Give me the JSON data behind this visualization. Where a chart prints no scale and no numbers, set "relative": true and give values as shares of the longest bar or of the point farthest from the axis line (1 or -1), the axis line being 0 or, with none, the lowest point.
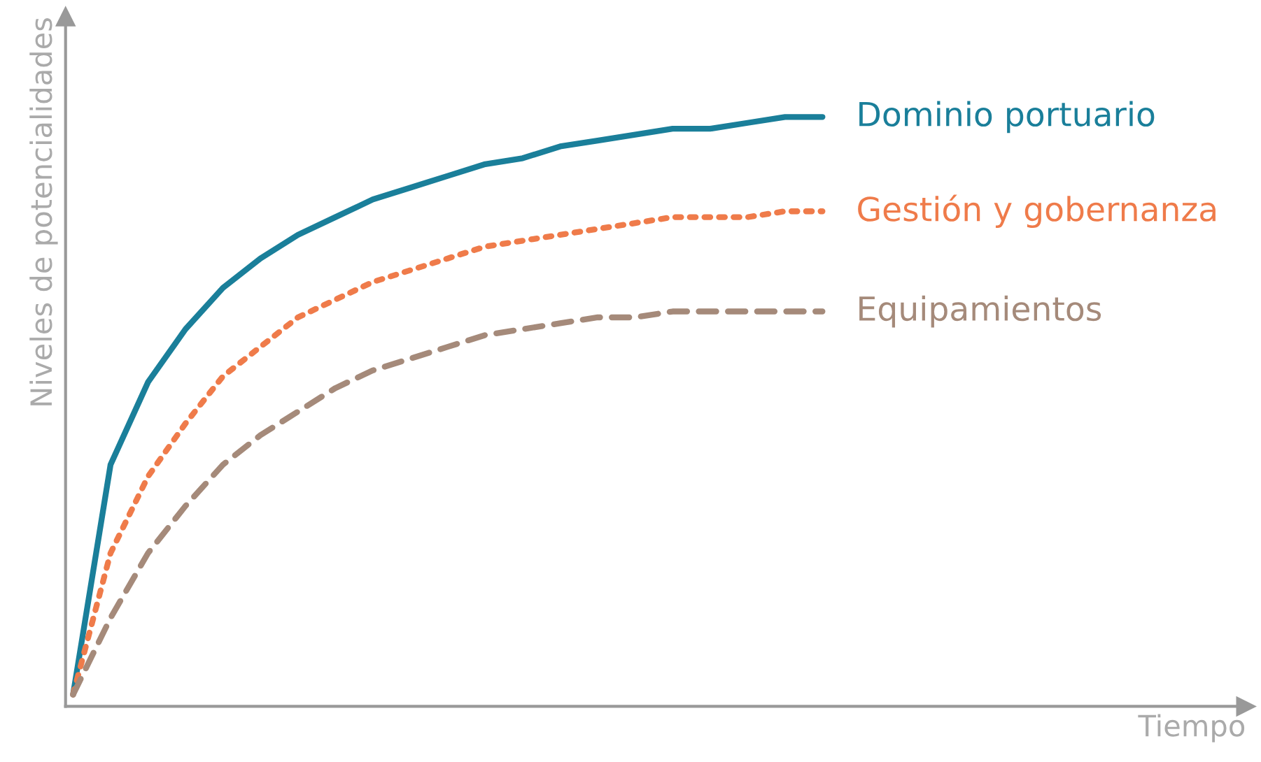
{
  "chart_data": {
    "type": "line",
    "relative": true,
    "xlabel": "Tiempo",
    "ylabel": "Niveles de potencialidades",
    "legend": false,
    "tick_labels": false,
    "categories": [
      null,
      null,
      null,
      null,
      null,
      null,
      null,
      null,
      null,
      null,
      null,
      null,
      null,
      null,
      null,
      null,
      null,
      null,
      null,
      null,
      null,
      null,
      null,
      null,
      null,
      null,
      null,
      null,
      null,
      null,
      null,
      null
    ],
    "series": [
      {
        "name": "Dominio portuario",
        "color": "#1a7f9a",
        "line_style": "solid",
        "values": [
          0.02,
          0.41,
          0.55,
          0.64,
          0.71,
          0.76,
          0.8,
          0.83,
          0.86,
          0.88,
          0.9,
          0.92,
          0.93,
          0.95,
          0.96,
          0.97,
          0.98,
          0.98,
          0.99,
          1.0,
          1.0,
          null,
          null,
          null,
          null,
          null,
          null,
          null,
          null,
          null,
          null,
          null
        ]
      },
      {
        "name": "Gestión y gobernanza",
        "color": "#ef7b4a",
        "line_style": "dotted",
        "values": [
          0.02,
          0.26,
          0.39,
          0.48,
          0.56,
          0.61,
          0.66,
          0.69,
          0.72,
          0.74,
          0.76,
          0.78,
          0.79,
          0.8,
          0.81,
          0.82,
          0.83,
          0.83,
          0.83,
          0.84,
          0.84,
          null,
          null,
          null,
          null,
          null,
          null,
          null,
          null,
          null,
          null,
          null
        ]
      },
      {
        "name": "Equipamientos",
        "color": "#a58a7a",
        "line_style": "dashed",
        "values": [
          0.02,
          0.15,
          0.26,
          0.34,
          0.41,
          0.46,
          0.5,
          0.54,
          0.57,
          0.59,
          0.61,
          0.63,
          0.64,
          0.65,
          0.66,
          0.66,
          0.67,
          0.67,
          0.67,
          0.67,
          0.67,
          null,
          null,
          null,
          null,
          null,
          null,
          null,
          null,
          null,
          null,
          null
        ]
      }
    ]
  }
}
